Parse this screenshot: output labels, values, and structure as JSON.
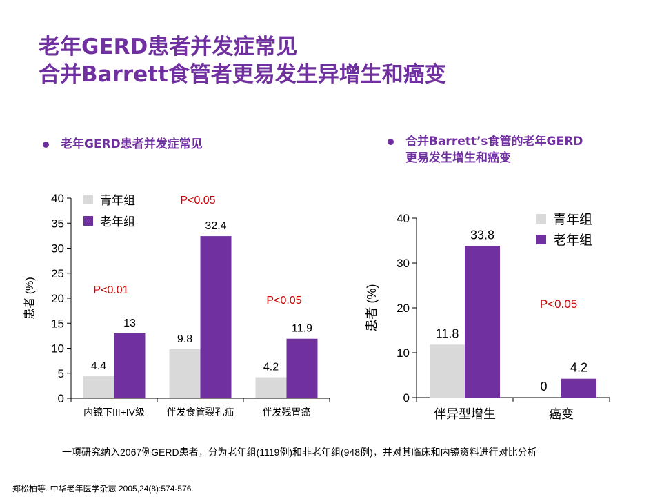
{
  "title": {
    "line1": "老年GERD患者并发症常见",
    "line2": "合并Barrett食管者更易发生异增生和癌变"
  },
  "left_panel": {
    "bullet": "老年GERD患者并发症常见"
  },
  "right_panel": {
    "bullet_line1": "合并Barrett’s食管的老年GERD",
    "bullet_line2": "更易发生增生和癌变"
  },
  "footnote": "一项研究纳入2067例GERD患者，分为老年组(1119例)和非老年组(948例)，并对其临床和内镜资料进行对比分析",
  "reference": "郑松柏等. 中华老年医学杂志 2005,24(8):574-576.",
  "colors": {
    "title": "#7030a0",
    "young": "#d9d9d9",
    "old": "#7030a0",
    "p_value": "#cc0000"
  },
  "chart_data": [
    {
      "type": "bar",
      "ylabel": "患者 (%)",
      "ylim": [
        0,
        40
      ],
      "yticks": [
        0,
        5,
        10,
        15,
        20,
        25,
        30,
        35,
        40
      ],
      "categories": [
        "内镜下III+IV级",
        "伴发食管裂孔疝",
        "伴发残胃癌"
      ],
      "series": [
        {
          "name": "青年组",
          "values": [
            4.4,
            9.8,
            4.2
          ],
          "labels": [
            "4.4",
            "9.8",
            "4.2"
          ]
        },
        {
          "name": "老年组",
          "values": [
            13,
            32.4,
            11.9
          ],
          "labels": [
            "13",
            "32.4",
            "11.9"
          ]
        }
      ],
      "p_values": [
        "P<0.01",
        "P<0.05",
        "P<0.05"
      ],
      "legend": "top-left",
      "grid": false
    },
    {
      "type": "bar",
      "ylabel": "患者 (%)",
      "ylim": [
        0,
        40
      ],
      "yticks": [
        0,
        10,
        20,
        30,
        40
      ],
      "categories": [
        "伴异型增生",
        "癌变"
      ],
      "series": [
        {
          "name": "青年组",
          "values": [
            11.8,
            0
          ],
          "labels": [
            "11.8",
            "0"
          ]
        },
        {
          "name": "老年组",
          "values": [
            33.8,
            4.2
          ],
          "labels": [
            "33.8",
            "4.2"
          ]
        }
      ],
      "p_values": [
        "P<0.05"
      ],
      "legend": "top-right",
      "grid": false
    }
  ]
}
